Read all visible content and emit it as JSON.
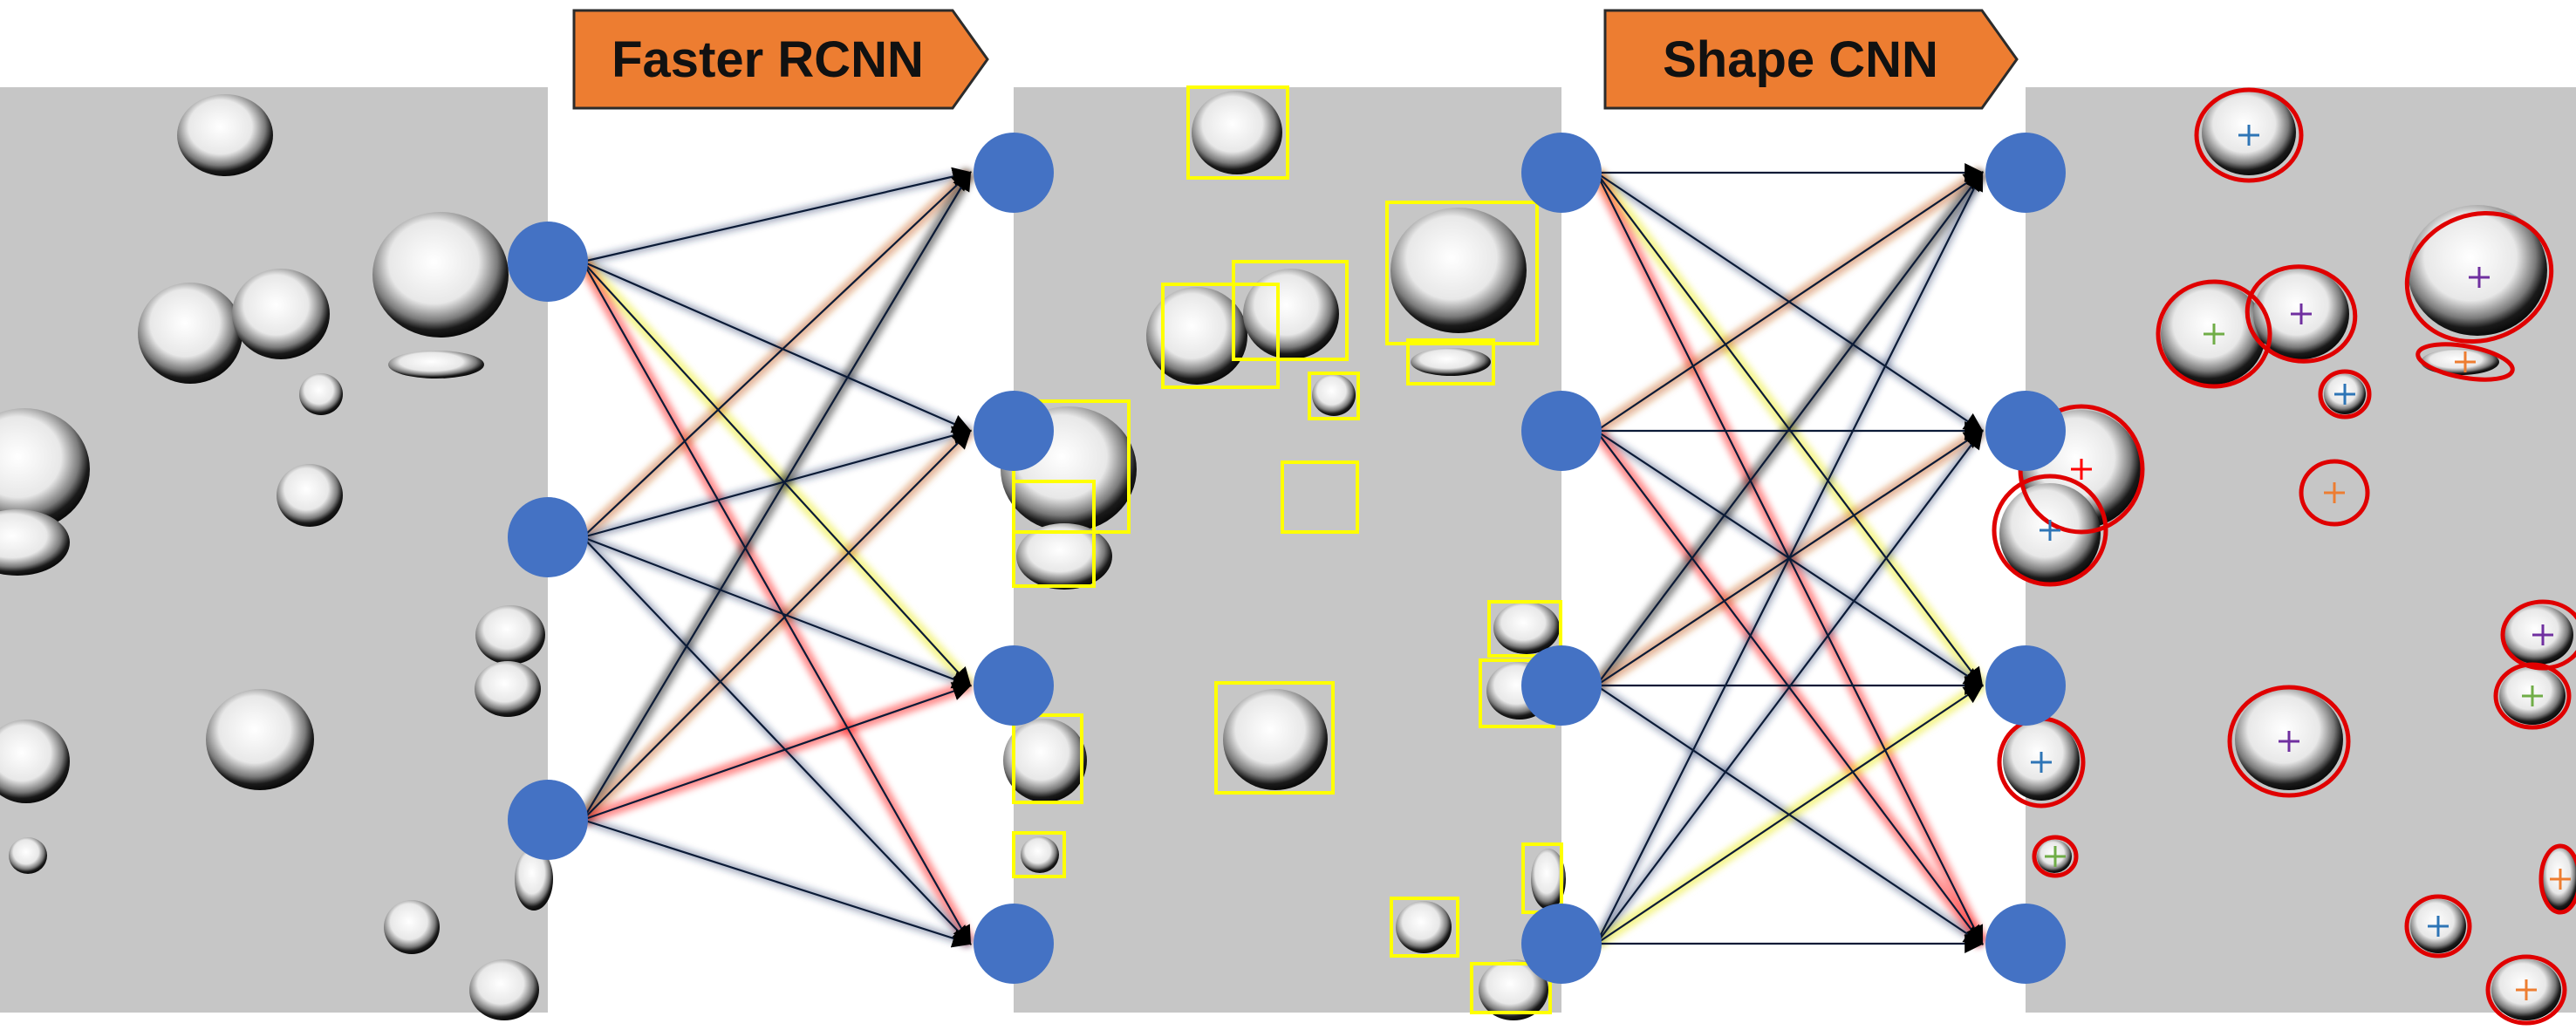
{
  "stages": [
    {
      "label": "Faster RCNN"
    },
    {
      "label": "Shape CNN"
    }
  ],
  "colors": {
    "panel_bg": "#c6c6c6",
    "label_fill": "#ed7d31",
    "node_fill": "#4472c4",
    "box_stroke": "#ffff00",
    "ellipse_stroke": "#e00000",
    "edge_default": "#1f3864",
    "edge_orange": "#c55a11",
    "edge_red": "#ff0000",
    "edge_black": "#000000",
    "edge_yellow": "#e6e600",
    "cross_blue": "#2e75b6",
    "cross_green": "#70ad47",
    "cross_purple": "#7030a0",
    "cross_orange": "#ed7d31"
  },
  "network_1": {
    "left_nodes": 3,
    "right_nodes": 4,
    "edges": [
      {
        "from": 0,
        "to": 0,
        "color": "edge_default"
      },
      {
        "from": 0,
        "to": 1,
        "color": "edge_default"
      },
      {
        "from": 0,
        "to": 2,
        "color": "edge_yellow"
      },
      {
        "from": 0,
        "to": 3,
        "color": "edge_red"
      },
      {
        "from": 1,
        "to": 0,
        "color": "edge_orange"
      },
      {
        "from": 1,
        "to": 1,
        "color": "edge_default"
      },
      {
        "from": 1,
        "to": 2,
        "color": "edge_default"
      },
      {
        "from": 1,
        "to": 3,
        "color": "edge_default"
      },
      {
        "from": 2,
        "to": 0,
        "color": "edge_black"
      },
      {
        "from": 2,
        "to": 1,
        "color": "edge_orange"
      },
      {
        "from": 2,
        "to": 2,
        "color": "edge_red"
      },
      {
        "from": 2,
        "to": 3,
        "color": "edge_default"
      }
    ]
  },
  "network_2": {
    "left_nodes": 4,
    "right_nodes": 4,
    "edges": [
      {
        "from": 0,
        "to": 0,
        "color": "edge_default"
      },
      {
        "from": 0,
        "to": 1,
        "color": "edge_default"
      },
      {
        "from": 0,
        "to": 2,
        "color": "edge_yellow"
      },
      {
        "from": 0,
        "to": 3,
        "color": "edge_red"
      },
      {
        "from": 1,
        "to": 0,
        "color": "edge_orange"
      },
      {
        "from": 1,
        "to": 1,
        "color": "edge_default"
      },
      {
        "from": 1,
        "to": 2,
        "color": "edge_default"
      },
      {
        "from": 1,
        "to": 3,
        "color": "edge_red"
      },
      {
        "from": 2,
        "to": 0,
        "color": "edge_black"
      },
      {
        "from": 2,
        "to": 1,
        "color": "edge_orange"
      },
      {
        "from": 2,
        "to": 2,
        "color": "edge_red"
      },
      {
        "from": 2,
        "to": 3,
        "color": "edge_default"
      },
      {
        "from": 3,
        "to": 0,
        "color": "edge_default"
      },
      {
        "from": 3,
        "to": 1,
        "color": "edge_default"
      },
      {
        "from": 3,
        "to": 2,
        "color": "edge_yellow"
      },
      {
        "from": 3,
        "to": 3,
        "color": "edge_yellow"
      }
    ]
  }
}
